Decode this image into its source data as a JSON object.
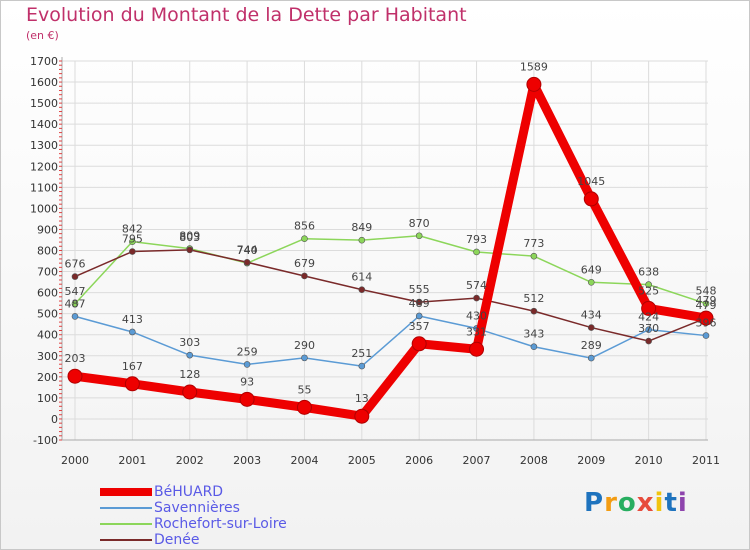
{
  "header": {
    "title": "Evolution du Montant de la Dette par Habitant",
    "subtitle": "(en €)"
  },
  "logo": {
    "text": "Proxiti",
    "colors": [
      "#1e73be",
      "#f39c12",
      "#27ae60",
      "#e74c3c",
      "#f1c40f",
      "#1e73be",
      "#8e44ad"
    ]
  },
  "chart_data": {
    "type": "line",
    "title": "Evolution du Montant de la Dette par Habitant",
    "subtitle": "(en €)",
    "xlabel": "",
    "ylabel": "",
    "x": [
      "2000",
      "2001",
      "2002",
      "2003",
      "2004",
      "2005",
      "2006",
      "2007",
      "2008",
      "2009",
      "2010",
      "2011"
    ],
    "ylim": [
      -100,
      1700
    ],
    "yticks": [
      -100,
      0,
      100,
      200,
      300,
      400,
      500,
      600,
      700,
      800,
      900,
      1000,
      1100,
      1200,
      1300,
      1400,
      1500,
      1600,
      1700
    ],
    "grid": true,
    "legend_position": "bottom-left",
    "series": [
      {
        "name": "BéHUARD",
        "color": "#ee0000",
        "emphasis": true,
        "values": [
          203,
          167,
          128,
          93,
          55,
          13,
          357,
          331,
          1589,
          1045,
          525,
          479
        ]
      },
      {
        "name": "Savennières",
        "color": "#5b9bd5",
        "emphasis": false,
        "values": [
          487,
          413,
          303,
          259,
          290,
          251,
          489,
          430,
          343,
          289,
          424,
          396
        ]
      },
      {
        "name": "Rochefort-sur-Loire",
        "color": "#8cd65a",
        "emphasis": false,
        "values": [
          547,
          842,
          809,
          740,
          856,
          849,
          870,
          793,
          773,
          649,
          638,
          548
        ]
      },
      {
        "name": "Denée",
        "color": "#7a2a2a",
        "emphasis": false,
        "values": [
          676,
          795,
          803,
          744,
          679,
          614,
          555,
          574,
          512,
          434,
          370,
          479
        ]
      }
    ]
  }
}
